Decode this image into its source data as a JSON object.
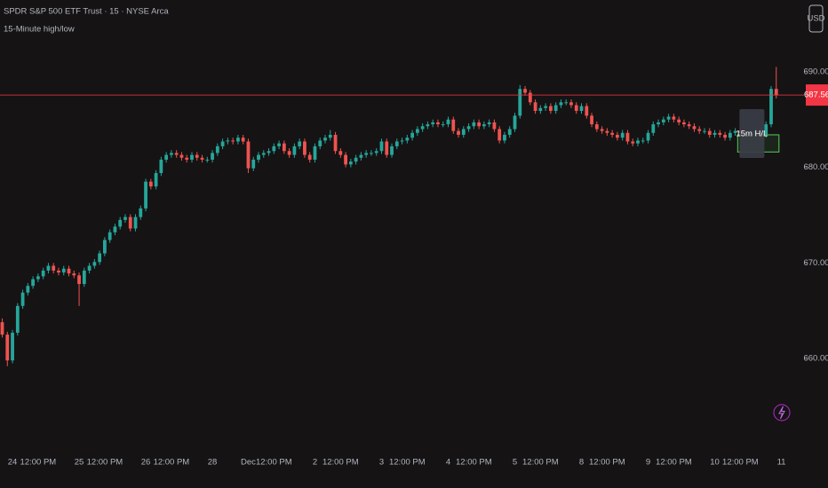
{
  "chart_data": {
    "type": "candlestick",
    "title": "SPDR S&P 500 ETF Trust · 15 · NYSE Arca",
    "subtitle": "15-Minute high/low",
    "currency": "USD",
    "up_color": "#26a69a",
    "down_color": "#ef5350",
    "last_price_color": "#f23645",
    "ylim": [
      651.1,
      697.5
    ],
    "yticks": [
      {
        "value": 660,
        "label": "660.00"
      },
      {
        "value": 670,
        "label": "670.00"
      },
      {
        "value": 680,
        "label": "680.00"
      },
      {
        "value": 690,
        "label": "690.00"
      }
    ],
    "indicator": {
      "label": "15m H/L",
      "high": 683.4,
      "low": 681.6,
      "color": "#4caf50"
    },
    "categories": [
      null,
      null,
      "24",
      null,
      null,
      null,
      null,
      "12:00 PM",
      null,
      null,
      null,
      null,
      null,
      null,
      null,
      "25",
      null,
      null,
      null,
      null,
      "12:00 PM",
      null,
      null,
      null,
      null,
      null,
      null,
      null,
      "26",
      null,
      null,
      null,
      null,
      "12:00 PM",
      null,
      null,
      null,
      null,
      null,
      null,
      null,
      "28",
      null,
      null,
      null,
      null,
      null,
      null,
      "Dec",
      null,
      null,
      null,
      null,
      "12:00 PM",
      null,
      null,
      null,
      null,
      null,
      null,
      null,
      "2",
      null,
      null,
      null,
      null,
      "12:00 PM",
      null,
      null,
      null,
      null,
      null,
      null,
      null,
      "3",
      null,
      null,
      null,
      null,
      "12:00 PM",
      null,
      null,
      null,
      null,
      null,
      null,
      null,
      "4",
      null,
      null,
      null,
      null,
      "12:00 PM",
      null,
      null,
      null,
      null,
      null,
      null,
      null,
      "5",
      null,
      null,
      null,
      null,
      "12:00 PM",
      null,
      null,
      null,
      null,
      null,
      null,
      null,
      "8",
      null,
      null,
      null,
      null,
      "12:00 PM",
      null,
      null,
      null,
      null,
      null,
      null,
      null,
      "9",
      null,
      null,
      null,
      null,
      "12:00 PM",
      null,
      null,
      null,
      null,
      null,
      null,
      null,
      "10",
      null,
      null,
      null,
      null,
      "12:00 PM",
      null,
      null,
      null,
      null,
      null,
      null,
      null,
      "11"
    ],
    "candles": [
      [
        663.8,
        664.2,
        662.2,
        662.5
      ],
      [
        662.5,
        662.8,
        659.2,
        659.8
      ],
      [
        659.8,
        663.0,
        659.5,
        662.7
      ],
      [
        662.7,
        665.8,
        662.4,
        665.5
      ],
      [
        665.5,
        667.2,
        665.2,
        666.9
      ],
      [
        666.9,
        667.9,
        666.6,
        667.6
      ],
      [
        667.6,
        668.6,
        667.3,
        668.3
      ],
      [
        668.3,
        668.9,
        668.0,
        668.6
      ],
      [
        668.6,
        669.5,
        668.3,
        669.2
      ],
      [
        669.2,
        670.0,
        668.9,
        669.7
      ],
      [
        669.7,
        670.0,
        668.9,
        669.2
      ],
      [
        669.2,
        669.5,
        668.7,
        669.0
      ],
      [
        669.0,
        669.7,
        668.7,
        669.4
      ],
      [
        669.4,
        669.7,
        668.6,
        668.9
      ],
      [
        668.9,
        669.2,
        668.4,
        668.7
      ],
      [
        668.7,
        669.0,
        665.5,
        667.8
      ],
      [
        667.8,
        669.5,
        667.5,
        669.2
      ],
      [
        669.2,
        670.0,
        668.9,
        669.7
      ],
      [
        669.7,
        670.4,
        669.4,
        670.1
      ],
      [
        670.1,
        671.3,
        669.8,
        671.0
      ],
      [
        671.0,
        672.7,
        670.7,
        672.4
      ],
      [
        672.4,
        673.5,
        672.1,
        673.2
      ],
      [
        673.2,
        674.1,
        672.9,
        673.8
      ],
      [
        673.8,
        674.8,
        673.5,
        674.5
      ],
      [
        674.5,
        675.1,
        674.2,
        674.8
      ],
      [
        674.8,
        675.1,
        673.3,
        673.6
      ],
      [
        673.6,
        675.1,
        673.3,
        674.8
      ],
      [
        674.8,
        676.0,
        674.5,
        675.7
      ],
      [
        675.7,
        678.8,
        675.4,
        678.5
      ],
      [
        678.5,
        678.8,
        677.7,
        678.0
      ],
      [
        678.0,
        679.7,
        677.7,
        679.4
      ],
      [
        679.4,
        681.1,
        679.1,
        680.8
      ],
      [
        680.8,
        681.6,
        680.5,
        681.3
      ],
      [
        681.3,
        681.8,
        681.0,
        681.5
      ],
      [
        681.5,
        681.8,
        681.0,
        681.3
      ],
      [
        681.3,
        681.6,
        680.7,
        681.0
      ],
      [
        681.0,
        681.3,
        680.5,
        680.8
      ],
      [
        680.8,
        681.6,
        680.5,
        681.3
      ],
      [
        681.3,
        681.6,
        680.7,
        681.0
      ],
      [
        681.0,
        681.3,
        680.5,
        680.8
      ],
      [
        680.8,
        681.1,
        680.5,
        680.8
      ],
      [
        680.8,
        681.8,
        680.5,
        681.5
      ],
      [
        681.5,
        682.5,
        681.2,
        682.2
      ],
      [
        682.2,
        683.0,
        681.9,
        682.7
      ],
      [
        682.7,
        683.1,
        682.4,
        682.8
      ],
      [
        682.8,
        683.1,
        682.4,
        682.7
      ],
      [
        682.7,
        683.4,
        682.4,
        683.1
      ],
      [
        683.1,
        683.4,
        682.4,
        682.7
      ],
      [
        682.7,
        683.0,
        679.4,
        679.9
      ],
      [
        679.9,
        681.1,
        679.6,
        680.8
      ],
      [
        680.8,
        681.6,
        680.5,
        681.3
      ],
      [
        681.3,
        681.8,
        681.0,
        681.5
      ],
      [
        681.5,
        682.0,
        681.2,
        681.7
      ],
      [
        681.7,
        682.5,
        681.4,
        682.2
      ],
      [
        682.2,
        682.8,
        681.9,
        682.5
      ],
      [
        682.5,
        682.8,
        681.4,
        681.7
      ],
      [
        681.7,
        682.0,
        681.0,
        681.3
      ],
      [
        681.3,
        682.5,
        681.0,
        682.2
      ],
      [
        682.2,
        683.0,
        681.9,
        682.7
      ],
      [
        682.7,
        683.0,
        681.0,
        681.3
      ],
      [
        681.3,
        681.6,
        680.5,
        680.8
      ],
      [
        680.8,
        682.5,
        680.5,
        682.2
      ],
      [
        682.2,
        683.1,
        681.9,
        682.8
      ],
      [
        682.8,
        683.4,
        682.5,
        683.1
      ],
      [
        683.1,
        683.9,
        682.8,
        683.4
      ],
      [
        683.4,
        683.7,
        681.4,
        681.7
      ],
      [
        681.7,
        682.0,
        681.0,
        681.3
      ],
      [
        681.3,
        681.6,
        680.0,
        680.3
      ],
      [
        680.3,
        680.9,
        680.0,
        680.6
      ],
      [
        680.6,
        681.3,
        680.3,
        681.0
      ],
      [
        681.0,
        681.6,
        680.7,
        681.3
      ],
      [
        681.3,
        681.8,
        681.0,
        681.5
      ],
      [
        681.5,
        681.8,
        681.2,
        681.5
      ],
      [
        681.5,
        682.0,
        681.2,
        681.7
      ],
      [
        681.7,
        683.0,
        681.4,
        682.7
      ],
      [
        682.7,
        683.0,
        681.0,
        681.3
      ],
      [
        681.3,
        682.5,
        681.0,
        682.2
      ],
      [
        682.2,
        683.0,
        681.9,
        682.7
      ],
      [
        682.7,
        683.1,
        682.4,
        682.8
      ],
      [
        682.8,
        683.4,
        682.5,
        683.1
      ],
      [
        683.1,
        683.9,
        682.8,
        683.6
      ],
      [
        683.6,
        684.3,
        683.3,
        684.0
      ],
      [
        684.0,
        684.6,
        683.7,
        684.3
      ],
      [
        684.3,
        684.8,
        684.0,
        684.5
      ],
      [
        684.5,
        685.0,
        684.2,
        684.7
      ],
      [
        684.7,
        685.0,
        684.2,
        684.5
      ],
      [
        684.5,
        684.8,
        684.2,
        684.5
      ],
      [
        684.5,
        685.3,
        684.2,
        685.0
      ],
      [
        685.0,
        685.3,
        683.5,
        683.8
      ],
      [
        683.8,
        684.1,
        683.1,
        683.4
      ],
      [
        683.4,
        684.3,
        683.1,
        684.0
      ],
      [
        684.0,
        684.6,
        683.7,
        684.3
      ],
      [
        684.3,
        685.0,
        684.0,
        684.7
      ],
      [
        684.7,
        685.0,
        684.0,
        684.3
      ],
      [
        684.3,
        684.8,
        684.0,
        684.5
      ],
      [
        684.5,
        685.0,
        684.2,
        684.7
      ],
      [
        684.7,
        685.0,
        683.7,
        684.0
      ],
      [
        684.0,
        684.3,
        682.5,
        682.8
      ],
      [
        682.8,
        683.7,
        682.5,
        683.4
      ],
      [
        683.4,
        684.3,
        683.1,
        684.0
      ],
      [
        684.0,
        685.7,
        683.7,
        685.4
      ],
      [
        685.4,
        688.6,
        685.1,
        688.2
      ],
      [
        688.2,
        688.5,
        687.5,
        687.8
      ],
      [
        687.8,
        688.1,
        686.5,
        686.8
      ],
      [
        686.8,
        687.1,
        685.6,
        685.9
      ],
      [
        685.9,
        686.5,
        685.6,
        686.2
      ],
      [
        686.2,
        686.7,
        685.9,
        686.4
      ],
      [
        686.4,
        686.7,
        685.6,
        685.9
      ],
      [
        685.9,
        686.8,
        685.6,
        686.5
      ],
      [
        686.5,
        687.1,
        686.2,
        686.8
      ],
      [
        686.8,
        687.1,
        686.5,
        686.8
      ],
      [
        686.8,
        687.1,
        686.2,
        686.5
      ],
      [
        686.5,
        686.8,
        685.6,
        685.9
      ],
      [
        685.9,
        686.7,
        685.6,
        686.4
      ],
      [
        686.4,
        686.7,
        685.1,
        685.4
      ],
      [
        685.4,
        685.7,
        684.2,
        684.5
      ],
      [
        684.5,
        684.8,
        683.7,
        684.0
      ],
      [
        684.0,
        684.3,
        683.5,
        683.8
      ],
      [
        683.8,
        684.1,
        683.3,
        683.6
      ],
      [
        683.6,
        683.9,
        683.1,
        683.4
      ],
      [
        683.4,
        683.7,
        682.8,
        683.1
      ],
      [
        683.1,
        683.9,
        682.8,
        683.6
      ],
      [
        683.6,
        683.9,
        682.4,
        682.7
      ],
      [
        682.7,
        683.0,
        682.2,
        682.5
      ],
      [
        682.5,
        683.1,
        682.2,
        682.8
      ],
      [
        682.8,
        683.1,
        682.5,
        682.8
      ],
      [
        682.8,
        683.9,
        682.5,
        683.6
      ],
      [
        683.6,
        684.8,
        683.3,
        684.5
      ],
      [
        684.5,
        685.0,
        684.2,
        684.7
      ],
      [
        684.7,
        685.3,
        684.4,
        685.0
      ],
      [
        685.0,
        685.6,
        684.7,
        685.3
      ],
      [
        685.3,
        685.6,
        684.7,
        685.0
      ],
      [
        685.0,
        685.3,
        684.4,
        684.7
      ],
      [
        684.7,
        685.0,
        684.2,
        684.5
      ],
      [
        684.5,
        684.8,
        684.0,
        684.3
      ],
      [
        684.3,
        684.6,
        683.7,
        684.0
      ],
      [
        684.0,
        684.3,
        683.5,
        683.8
      ],
      [
        683.8,
        684.1,
        683.5,
        683.8
      ],
      [
        683.8,
        684.1,
        683.1,
        683.4
      ],
      [
        683.4,
        683.9,
        683.1,
        683.6
      ],
      [
        683.6,
        683.9,
        683.1,
        683.4
      ],
      [
        683.4,
        683.7,
        682.8,
        683.1
      ],
      [
        683.1,
        683.9,
        682.8,
        683.6
      ],
      [
        683.6,
        684.1,
        683.3,
        683.8
      ],
      [
        683.8,
        684.1,
        683.3,
        683.6
      ],
      [
        683.6,
        683.9,
        683.1,
        683.4
      ],
      [
        683.4,
        683.9,
        683.1,
        683.6
      ],
      [
        683.6,
        684.1,
        683.3,
        683.8
      ],
      [
        683.8,
        684.1,
        683.1,
        683.4
      ],
      [
        683.4,
        684.8,
        683.1,
        684.5
      ],
      [
        684.5,
        688.5,
        684.2,
        688.2
      ],
      [
        688.2,
        690.5,
        687.2,
        687.56
      ],
      null
    ]
  }
}
